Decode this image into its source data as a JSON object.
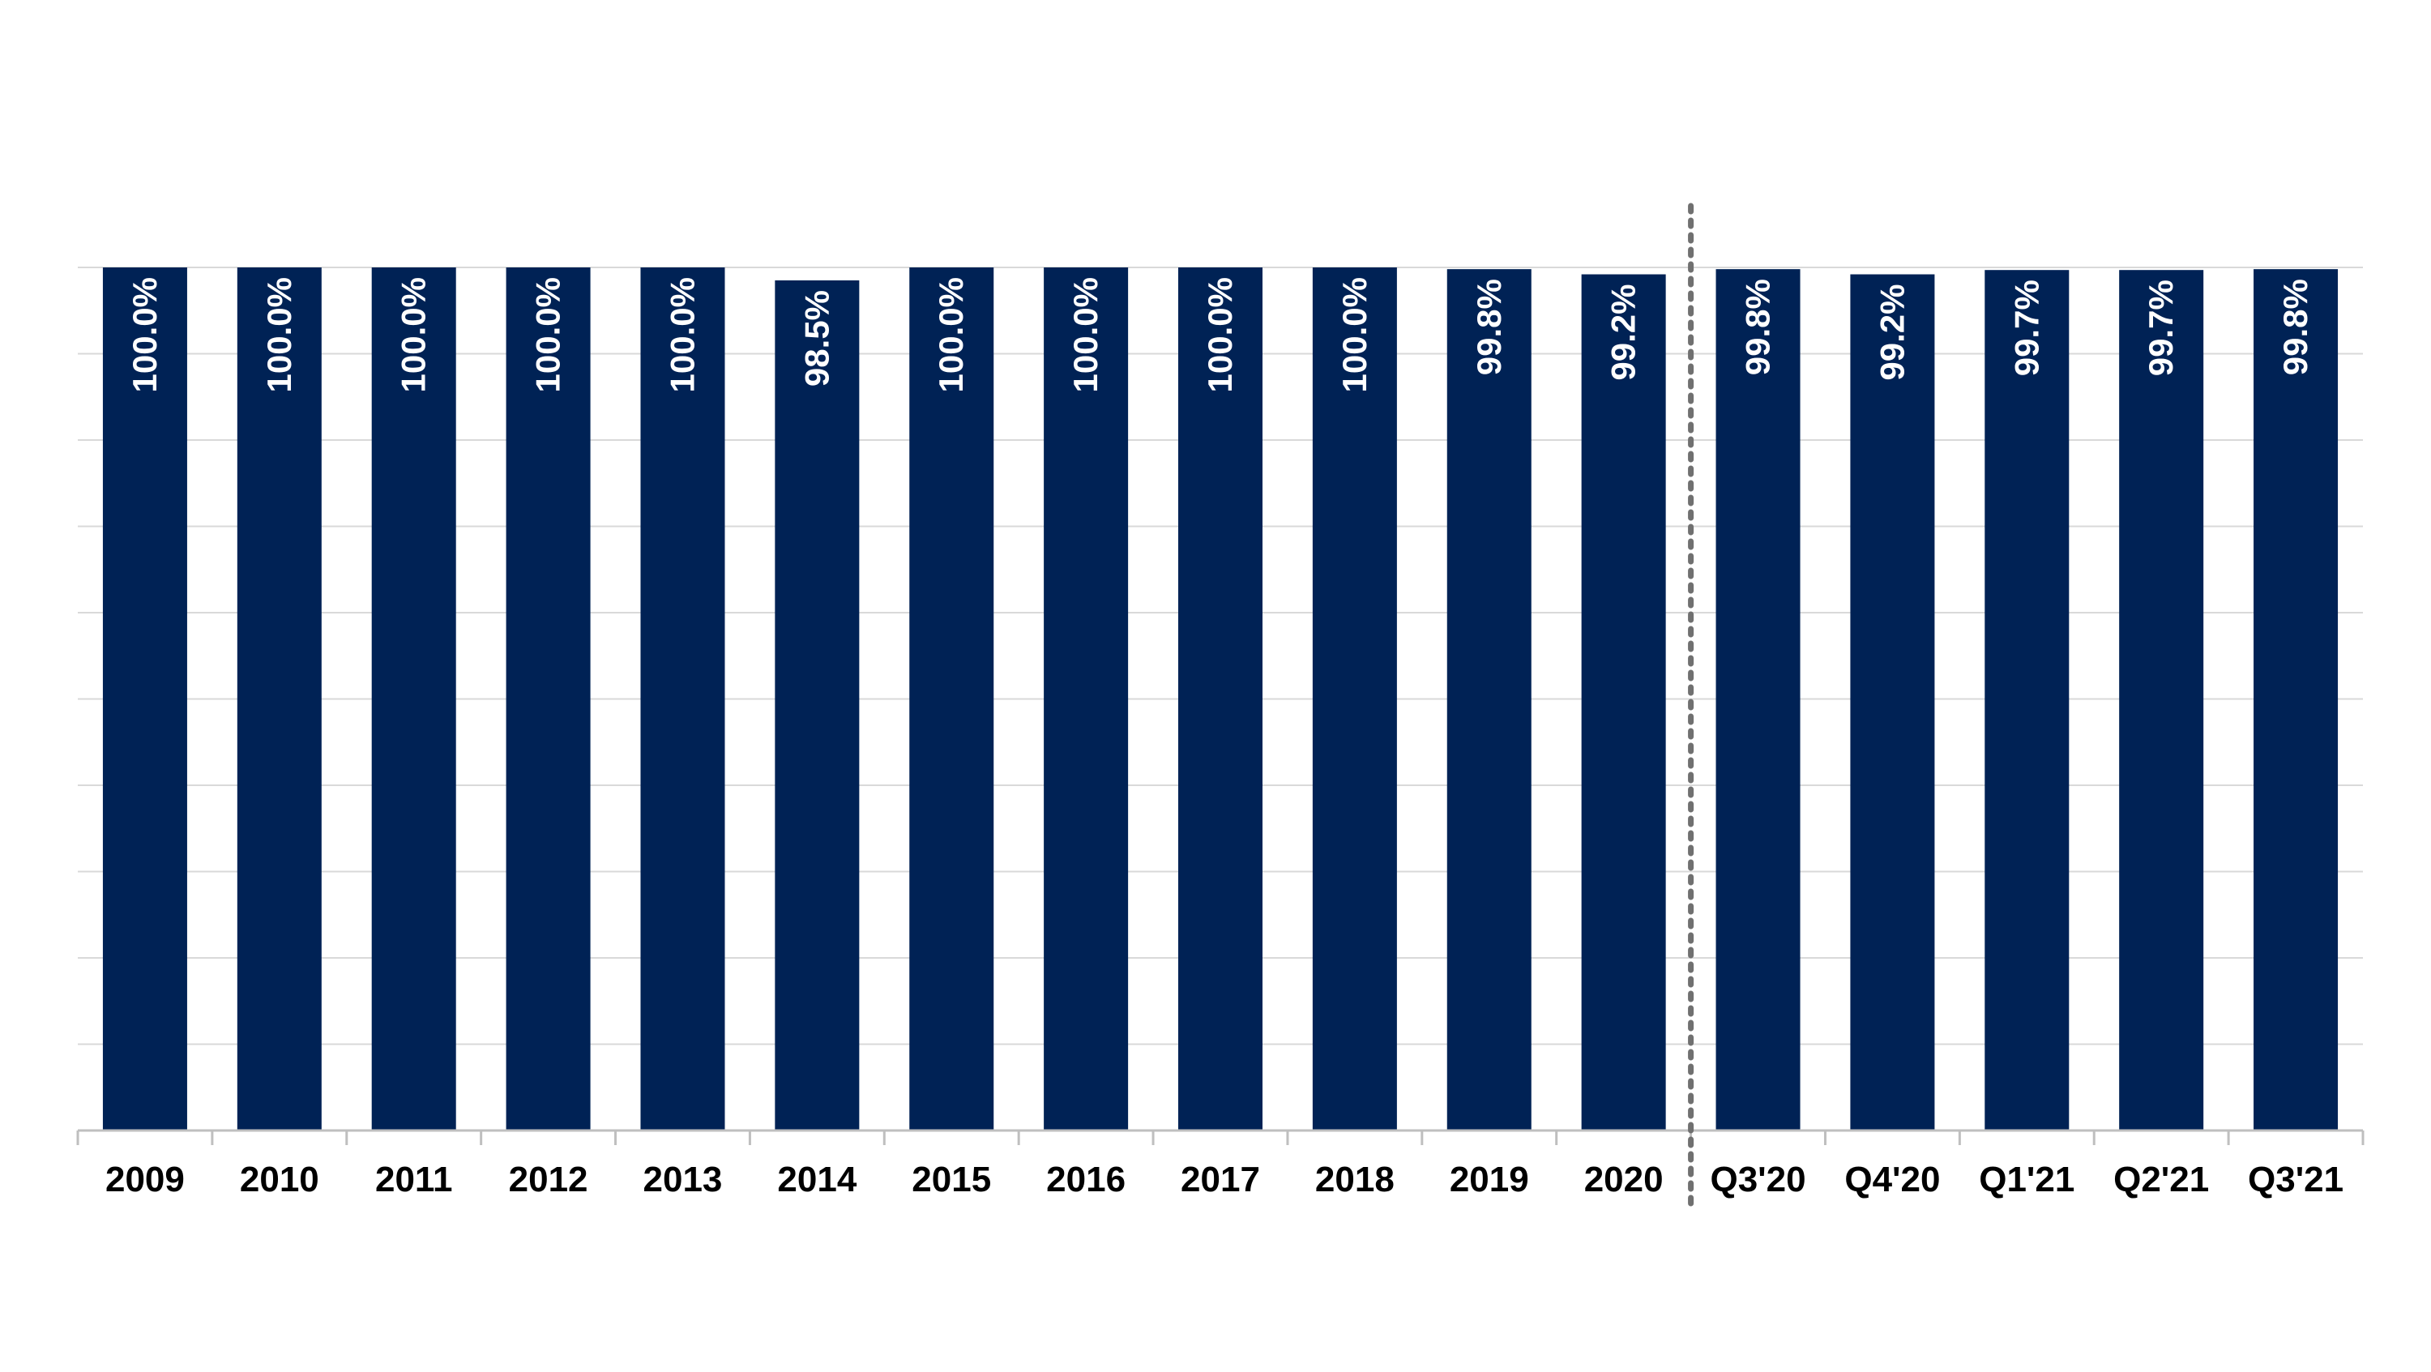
{
  "colors": {
    "bar": "#002255",
    "grid": "#d9d9d9",
    "axis": "#bfbfbf",
    "divider": "#707070",
    "label_text": "#ffffff",
    "tick_text": "#000000"
  },
  "chart_data": {
    "type": "bar",
    "title": "",
    "xlabel": "",
    "ylabel": "",
    "ylim": [
      0,
      100
    ],
    "grid": true,
    "legend": "none",
    "categories": [
      "2009",
      "2010",
      "2011",
      "2012",
      "2013",
      "2014",
      "2015",
      "2016",
      "2017",
      "2018",
      "2019",
      "2020",
      "Q3'20",
      "Q4'20",
      "Q1'21",
      "Q2'21",
      "Q3'21"
    ],
    "values": [
      100.0,
      100.0,
      100.0,
      100.0,
      100.0,
      98.5,
      100.0,
      100.0,
      100.0,
      100.0,
      99.8,
      99.2,
      99.8,
      99.2,
      99.7,
      99.7,
      99.8
    ],
    "data_labels": [
      "100.0%",
      "100.0%",
      "100.0%",
      "100.0%",
      "100.0%",
      "98.5%",
      "100.0%",
      "100.0%",
      "100.0%",
      "100.0%",
      "99.8%",
      "99.2%",
      "99.8%",
      "99.2%",
      "99.7%",
      "99.7%",
      "99.8%"
    ],
    "divider_after_category": "2020"
  }
}
